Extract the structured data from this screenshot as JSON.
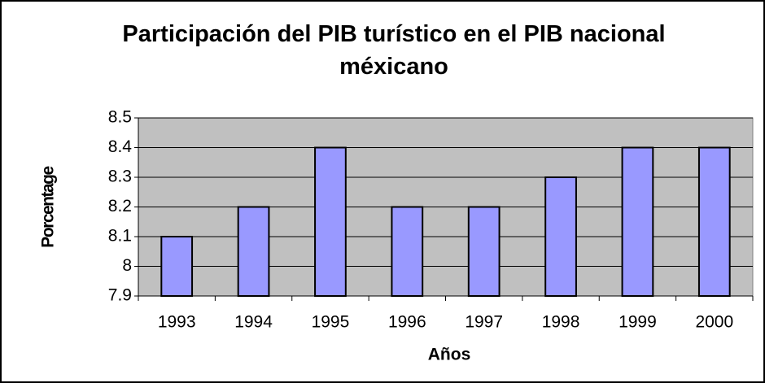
{
  "chart_data": {
    "type": "bar",
    "title": "Participación del PIB turístico en el PIB nacional méxicano",
    "x_label": "Años",
    "y_label": "Porcentage",
    "categories": [
      "1993",
      "1994",
      "1995",
      "1996",
      "1997",
      "1998",
      "1999",
      "2000"
    ],
    "values": [
      8.1,
      8.2,
      8.4,
      8.2,
      8.2,
      8.3,
      8.4,
      8.4
    ],
    "color": "#9999ff",
    "plot_background": "#c0c0c0",
    "ylim": [
      7.9,
      8.5
    ],
    "yticks": [
      7.9,
      8,
      8.1,
      8.2,
      8.3,
      8.4,
      8.5
    ],
    "grid": true
  }
}
